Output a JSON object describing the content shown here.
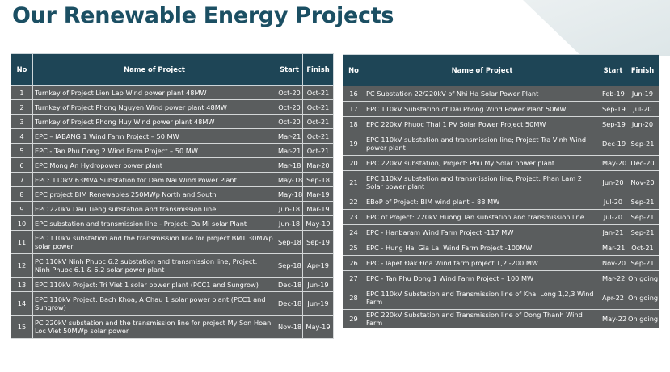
{
  "page": {
    "title": "Our Renewable Energy Projects"
  },
  "headers": {
    "no": "No",
    "name": "Name of Project",
    "start": "Start",
    "finish": "Finish"
  },
  "left_rows": [
    {
      "no": "1",
      "name": "Turnkey of Project  Lien Lap Wind power plant 48MW",
      "start": "Oct-20",
      "finish": "Oct-21",
      "lines": 1
    },
    {
      "no": "2",
      "name": "Turnkey of Project  Phong Nguyen Wind power plant 48MW",
      "start": "Oct-20",
      "finish": "Oct-21",
      "lines": 1
    },
    {
      "no": "3",
      "name": "Turnkey of Project  Phong Huy Wind power plant 48MW",
      "start": "Oct-20",
      "finish": "Oct-21",
      "lines": 1
    },
    {
      "no": "4",
      "name": "EPC – IABANG 1 Wind Farm Project – 50 MW",
      "start": "Mar-21",
      "finish": "Oct-21",
      "lines": 1
    },
    {
      "no": "5",
      "name": "EPC - Tan Phu Dong 2 Wind Farm Project – 50 MW",
      "start": "Mar-21",
      "finish": "Oct-21",
      "lines": 1
    },
    {
      "no": "6",
      "name": "EPC Mong An Hydropower power plant",
      "start": "Mar-18",
      "finish": "Mar-20",
      "lines": 1
    },
    {
      "no": "7",
      "name": "EPC: 110kV 63MVA Substation for Dam Nai Wind Power Plant",
      "start": "May-18",
      "finish": "Sep-18",
      "lines": 1
    },
    {
      "no": "8",
      "name": "EPC project BIM Renewables 250MWp North and South",
      "start": "May-18",
      "finish": "Mar-19",
      "lines": 1
    },
    {
      "no": "9",
      "name": "EPC 220kV Dau Tieng substation and transmission line",
      "start": "Jun-18",
      "finish": "Mar-19",
      "lines": 1
    },
    {
      "no": "10",
      "name": "EPC substation and transmission line - Project: Da Mi solar Plant",
      "start": "Jun-18",
      "finish": "May-19",
      "lines": 1
    },
    {
      "no": "11",
      "name": "EPC 110kV substation and the transmission line for project  BMT 30MWp solar power",
      "start": "Sep-18",
      "finish": "Sep-19",
      "lines": 2
    },
    {
      "no": "12",
      "name": "PC 110kV Ninh Phuoc 6.2 substation and transmission line, Project: Ninh Phuoc 6.1 & 6.2 solar power plant",
      "start": "Sep-18",
      "finish": "Apr-19",
      "lines": 2
    },
    {
      "no": "13",
      "name": "EPC 110kV Project: Tri Viet 1 solar power plant (PCC1 and Sungrow)",
      "start": "Dec-18",
      "finish": "Jun-19",
      "lines": 1
    },
    {
      "no": "14",
      "name": "EPC 110kV Project: Bach Khoa, A Chau 1 solar power plant (PCC1 and Sungrow)",
      "start": "Dec-18",
      "finish": "Jun-19",
      "lines": 2
    },
    {
      "no": "15",
      "name": "PC 220kV substation and the transmission line for project  My Son Hoan Loc Viet 50MWp solar power",
      "start": "Nov-18",
      "finish": "May-19",
      "lines": 2
    }
  ],
  "right_rows": [
    {
      "no": "16",
      "name": "PC Substation 22/220kV of  Nhi Ha Solar Power Plant",
      "start": "Feb-19",
      "finish": "Jun-19",
      "lines": 1
    },
    {
      "no": "17",
      "name": "EPC 110kV Substation of Dai Phong Wind Power Plant 50MW",
      "start": "Sep-19",
      "finish": "Jul-20",
      "lines": 1
    },
    {
      "no": "18",
      "name": "EPC 220kV Phuoc Thai 1 PV Solar Power Project 50MW",
      "start": "Sep-19",
      "finish": "Jun-20",
      "lines": 1
    },
    {
      "no": "19",
      "name": "EPC 110kV substation and transmission line; Project Tra Vinh Wind power plant",
      "start": "Dec-19",
      "finish": "Sep-21",
      "lines": 2
    },
    {
      "no": "20",
      "name": "EPC 220kV substation, Project: Phu My Solar power plant",
      "start": "May-20",
      "finish": "Dec-20",
      "lines": 1
    },
    {
      "no": "21",
      "name": "EPC 110kV substation and transmission line, Project: Phan Lam 2 Solar power plant",
      "start": "Jun-20",
      "finish": "Nov-20",
      "lines": 2
    },
    {
      "no": "22",
      "name": "EBoP of Project: BIM wind plant – 88 MW",
      "start": "Jul-20",
      "finish": "Sep-21",
      "lines": 1
    },
    {
      "no": "23",
      "name": "EPC of Project: 220kV Huong Tan substation and transmission line",
      "start": "Jul-20",
      "finish": "Sep-21",
      "lines": 1
    },
    {
      "no": "24",
      "name": "EPC - Hanbaram Wind Farm Project -117 MW",
      "start": "Jan-21",
      "finish": "Sep-21",
      "lines": 1
    },
    {
      "no": "25",
      "name": "EPC - Hung Hai Gia Lai Wind Farm Project -100MW",
      "start": "Mar-21",
      "finish": "Oct-21",
      "lines": 1
    },
    {
      "no": "26",
      "name": "EPC - Iapet Đak Đoa Wind farm project 1,2 -200 MW",
      "start": "Nov-20",
      "finish": "Sep-21",
      "lines": 1
    },
    {
      "no": "27",
      "name": "EPC - Tan Phu Dong 1 Wind Farm Project – 100 MW",
      "start": "Mar-22",
      "finish": "On going",
      "lines": 1
    },
    {
      "no": "28",
      "name": "EPC 110kV Substation and Transmission line of Khai Long 1,2,3 Wind Farm",
      "start": "Apr-22",
      "finish": "On going",
      "lines": 2
    },
    {
      "no": "29",
      "name": "EPC 220kV Substation and Transmission line of Dong Thanh Wind Farm",
      "start": "May-22",
      "finish": "On going",
      "lines": 1
    }
  ]
}
